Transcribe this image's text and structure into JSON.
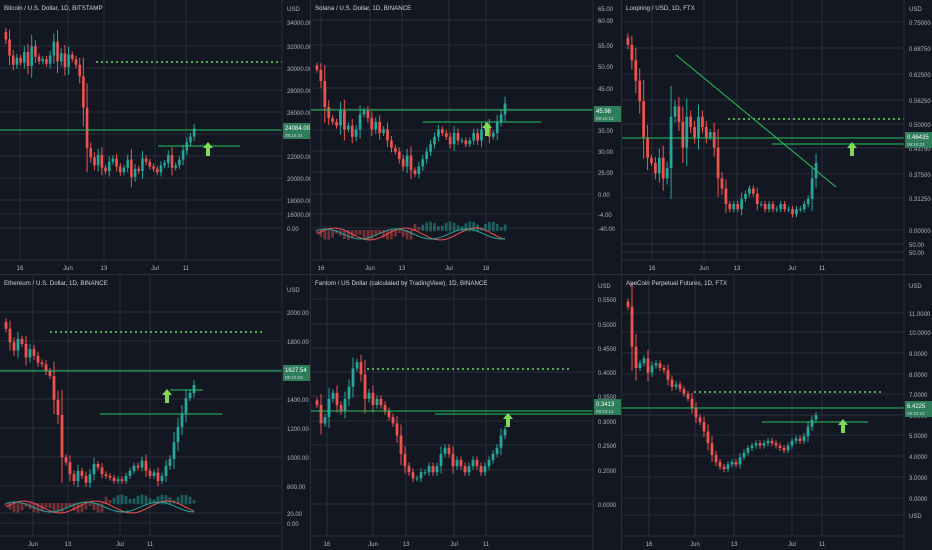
{
  "colors": {
    "background": "#131722",
    "grid": "#2a2e39",
    "up": "#26a69a",
    "down": "#ef5350",
    "line_green": "#22c55e",
    "dotted_green": "#4caf50",
    "arrow_green": "#7ed957",
    "price_tag": "#2e7d5b",
    "text": "#b2b5be"
  },
  "panels": [
    {
      "id": "btc",
      "title": "Bitcoin / U.S. Dollar, 1D, BITSTAMP",
      "axis_labels": [
        "USD",
        "34000.00",
        "32000.00",
        "30000.00",
        "28000.00",
        "26000.00",
        "24000.00",
        "22000.00",
        "20000.00",
        "18000.00",
        "16000.00",
        "0.00"
      ],
      "date_labels": [
        "16",
        "Jun",
        "13",
        "Jul",
        "11"
      ],
      "price_tag": [
        "24084.00",
        "09:10:24"
      ],
      "has_indicator": false
    },
    {
      "id": "sol",
      "title": "Solana / U.S. Dollar, 1D, BINANCE",
      "axis_labels": [
        "65.00",
        "60.00",
        "55.00",
        "50.00",
        "45.00",
        "40.00",
        "35.00",
        "30.00",
        "25.00",
        "0.00",
        "-4.00",
        "-40.00"
      ],
      "date_labels": [
        "16",
        "Jun",
        "13",
        "Jul",
        "18"
      ],
      "price_tag": [
        "45.98",
        "09:10:13"
      ],
      "has_indicator": true
    },
    {
      "id": "lrc",
      "title": "Loopring / USD, 1D, FTX",
      "axis_labels": [
        "USD",
        "0.75000",
        "0.68750",
        "0.62500",
        "0.56250",
        "0.50000",
        "0.43750",
        "0.37500",
        "0.31250",
        "0.00000",
        "50.00",
        "50.00"
      ],
      "date_labels": [
        "16",
        "Jun",
        "13",
        "Jul",
        "11"
      ],
      "price_tag": [
        "0.46435",
        "09:10:23"
      ],
      "has_indicator": false
    },
    {
      "id": "eth",
      "title": "Ethereum / U.S. Dollar, 1D, BINANCE",
      "axis_labels": [
        "USD",
        "2000.00",
        "1800.00",
        "1600.00",
        "1400.00",
        "1200.00",
        "1000.00",
        "800.00",
        "20.00",
        "0.00"
      ],
      "date_labels": [
        "Jun",
        "13",
        "Jul",
        "11"
      ],
      "price_tag": [
        "1627.54",
        "09:10:23"
      ],
      "has_indicator": true
    },
    {
      "id": "ftm",
      "title": "Fantom / US Dollar (calculated by TradingView), 1D, BINANCE",
      "axis_labels": [
        "USD",
        "0.5500",
        "0.5000",
        "0.4500",
        "0.4000",
        "0.3500",
        "0.3000",
        "0.2500",
        "0.2000",
        "0.0000"
      ],
      "date_labels": [
        "16",
        "Jun",
        "13",
        "Jul",
        "11"
      ],
      "price_tag": [
        "0.3413",
        "09:10:13"
      ],
      "has_indicator": false
    },
    {
      "id": "ape",
      "title": "ApeCoin Perpetual Futures, 1D, FTX",
      "axis_labels": [
        "USD",
        "11.0000",
        "10.0000",
        "9.0000",
        "8.0000",
        "7.0000",
        "6.0000",
        "5.0000",
        "4.0000",
        "3.0000",
        "0.0000",
        "USD"
      ],
      "date_labels": [
        "16",
        "Jun",
        "13",
        "Jul",
        "11"
      ],
      "price_tag": [
        "6.4225",
        "09:10:23"
      ],
      "has_indicator": false
    }
  ],
  "chart_data": [
    {
      "type": "candlestick",
      "name": "BTC",
      "series": [
        31800,
        30400,
        29600,
        30200,
        29800,
        30700,
        29500,
        31200,
        30300,
        29900,
        30100,
        29700,
        30400,
        31600,
        29900,
        30600,
        29400,
        30500,
        30100,
        29600,
        28600,
        25900,
        22400,
        21600,
        20900,
        21800,
        20700,
        20400,
        21200,
        21500,
        20800,
        20300,
        20700,
        21400,
        19900,
        20600,
        20400,
        21500,
        21200,
        20800,
        20600,
        20300,
        20900,
        21100,
        21800,
        20700,
        20900,
        21400,
        22200,
        22900,
        23400,
        24084
      ]
    },
    {
      "type": "candlestick",
      "name": "SOL",
      "series": [
        55,
        52,
        45,
        42,
        41,
        40,
        44,
        39,
        40,
        37,
        39,
        43,
        44,
        42,
        39,
        41,
        38,
        39,
        36,
        34,
        33,
        31,
        29,
        32,
        28,
        27,
        29,
        31,
        33,
        35,
        37,
        39,
        38,
        37,
        35,
        38,
        36,
        36,
        35,
        36,
        38,
        36,
        39,
        40,
        37,
        38,
        41,
        43,
        46
      ]
    },
    {
      "type": "candlestick",
      "name": "LRC",
      "series": [
        0.69,
        0.66,
        0.62,
        0.58,
        0.51,
        0.47,
        0.46,
        0.44,
        0.47,
        0.43,
        0.45,
        0.55,
        0.57,
        0.54,
        0.49,
        0.55,
        0.53,
        0.51,
        0.55,
        0.53,
        0.51,
        0.52,
        0.49,
        0.43,
        0.41,
        0.38,
        0.37,
        0.38,
        0.37,
        0.39,
        0.4,
        0.41,
        0.4,
        0.38,
        0.38,
        0.37,
        0.38,
        0.37,
        0.37,
        0.38,
        0.37,
        0.37,
        0.36,
        0.37,
        0.37,
        0.38,
        0.39,
        0.43,
        0.46
      ]
    },
    {
      "type": "candlestick",
      "name": "ETH",
      "series": [
        1960,
        1880,
        1830,
        1900,
        1870,
        1790,
        1840,
        1800,
        1760,
        1750,
        1710,
        1680,
        1540,
        1450,
        1200,
        1170,
        1100,
        1060,
        1120,
        1090,
        1050,
        1100,
        1160,
        1140,
        1100,
        1090,
        1080,
        1060,
        1070,
        1060,
        1090,
        1120,
        1150,
        1140,
        1180,
        1120,
        1090,
        1110,
        1060,
        1090,
        1150,
        1190,
        1290,
        1380,
        1460,
        1550,
        1580,
        1627
      ]
    },
    {
      "type": "candlestick",
      "name": "FTM",
      "series": [
        0.38,
        0.35,
        0.36,
        0.39,
        0.4,
        0.38,
        0.37,
        0.39,
        0.41,
        0.44,
        0.45,
        0.43,
        0.39,
        0.4,
        0.38,
        0.39,
        0.38,
        0.37,
        0.36,
        0.35,
        0.33,
        0.3,
        0.28,
        0.27,
        0.26,
        0.26,
        0.27,
        0.27,
        0.28,
        0.27,
        0.28,
        0.3,
        0.31,
        0.3,
        0.28,
        0.29,
        0.28,
        0.27,
        0.28,
        0.29,
        0.28,
        0.27,
        0.28,
        0.29,
        0.3,
        0.31,
        0.33,
        0.34
      ]
    },
    {
      "type": "candlestick",
      "name": "APE",
      "series": [
        11.0,
        9.3,
        8.4,
        8.6,
        8.8,
        8.2,
        8.5,
        8.6,
        8.4,
        8.3,
        7.9,
        7.6,
        7.7,
        7.5,
        7.3,
        7.1,
        6.7,
        6.3,
        6.1,
        5.7,
        5.2,
        4.7,
        4.4,
        4.2,
        4.1,
        4.3,
        4.4,
        4.3,
        4.6,
        4.8,
        5.0,
        5.1,
        5.2,
        5.1,
        5.2,
        5.3,
        5.2,
        5.1,
        5.0,
        4.9,
        5.1,
        5.3,
        5.4,
        5.3,
        5.5,
        5.9,
        6.2,
        6.4
      ]
    }
  ]
}
